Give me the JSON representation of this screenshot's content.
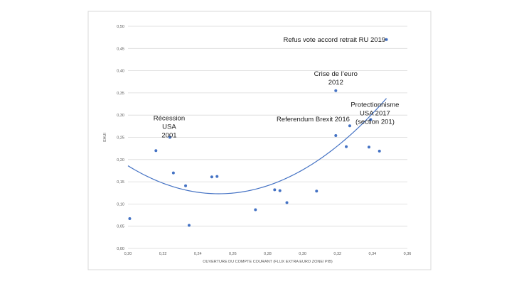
{
  "chart_data": {
    "type": "scatter",
    "title": "",
    "xlabel": "OUVERTURE DU COMPTE COURANT (FLUX EXTRA EURO ZONE/ PIB)",
    "ylabel": "EAUI",
    "xlim": [
      0.2,
      0.36
    ],
    "ylim": [
      0.0,
      0.5
    ],
    "x_ticks": [
      "0,20",
      "0,22",
      "0,24",
      "0,26",
      "0,28",
      "0,30",
      "0,32",
      "0,34",
      "0,36"
    ],
    "y_ticks": [
      "0,00",
      "0,05",
      "0,10",
      "0,15",
      "0,20",
      "0,25",
      "0,30",
      "0,35",
      "0,40",
      "0,45",
      "0,50"
    ],
    "grid": "horizontal",
    "colors": {
      "points": "#4472c4",
      "trend": "#4472c4",
      "grid": "#d9d9d9"
    },
    "points": [
      {
        "x": 0.201,
        "y": 0.067
      },
      {
        "x": 0.216,
        "y": 0.22
      },
      {
        "x": 0.224,
        "y": 0.25
      },
      {
        "x": 0.226,
        "y": 0.17
      },
      {
        "x": 0.233,
        "y": 0.141
      },
      {
        "x": 0.235,
        "y": 0.052
      },
      {
        "x": 0.248,
        "y": 0.161
      },
      {
        "x": 0.251,
        "y": 0.162
      },
      {
        "x": 0.273,
        "y": 0.087
      },
      {
        "x": 0.284,
        "y": 0.132
      },
      {
        "x": 0.287,
        "y": 0.13
      },
      {
        "x": 0.291,
        "y": 0.103
      },
      {
        "x": 0.308,
        "y": 0.129
      },
      {
        "x": 0.319,
        "y": 0.254
      },
      {
        "x": 0.319,
        "y": 0.355
      },
      {
        "x": 0.325,
        "y": 0.229
      },
      {
        "x": 0.327,
        "y": 0.276
      },
      {
        "x": 0.338,
        "y": 0.228
      },
      {
        "x": 0.339,
        "y": 0.29
      },
      {
        "x": 0.344,
        "y": 0.219
      },
      {
        "x": 0.348,
        "y": 0.47
      }
    ],
    "trendline": {
      "type": "polynomial-2",
      "x_range": [
        0.2,
        0.348
      ],
      "vertex": {
        "x": 0.252,
        "y": 0.123
      },
      "start_y": 0.186
    },
    "annotations": [
      {
        "lines": [
          "Refus vote accord retrait RU 2019"
        ],
        "anchor": {
          "x": 0.348,
          "y": 0.47
        }
      },
      {
        "lines": [
          "Crise de l’euro",
          "2012"
        ],
        "anchor": {
          "x": 0.319,
          "y": 0.355
        }
      },
      {
        "lines": [
          "Protectionnisme",
          "USA 2017",
          "(section 201)"
        ],
        "anchor": {
          "x": 0.339,
          "y": 0.29
        }
      },
      {
        "lines": [
          "Referendum  Brexit 2016"
        ],
        "anchor": {
          "x": 0.327,
          "y": 0.276
        }
      },
      {
        "lines": [
          "Récession",
          "USA",
          "2001"
        ],
        "anchor": {
          "x": 0.224,
          "y": 0.25
        }
      }
    ]
  }
}
